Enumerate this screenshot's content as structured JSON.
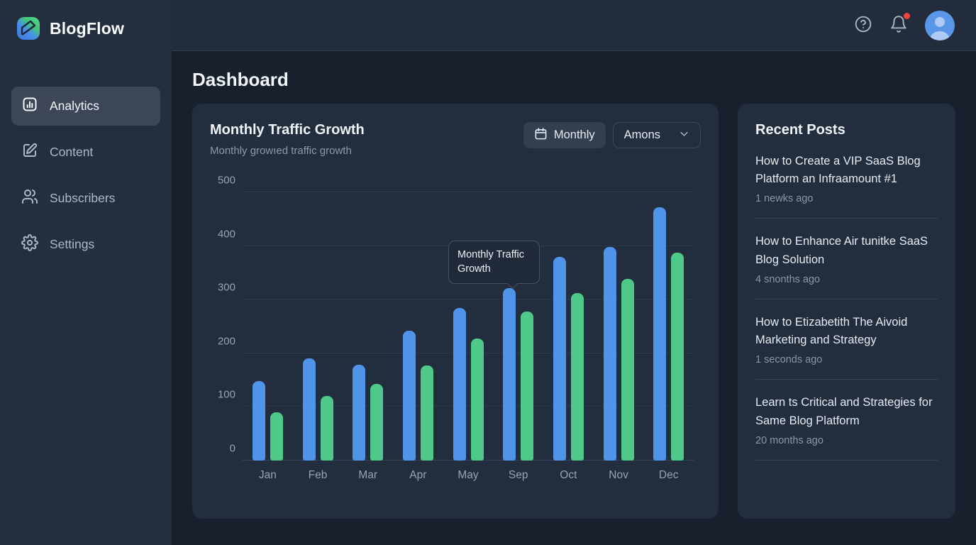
{
  "brand": {
    "name": "BlogFlow"
  },
  "sidebar": {
    "items": [
      {
        "label": "Analytics",
        "icon": "bar-chart-icon",
        "active": true
      },
      {
        "label": "Content",
        "icon": "edit-icon",
        "active": false
      },
      {
        "label": "Subscribers",
        "icon": "users-icon",
        "active": false
      },
      {
        "label": "Settings",
        "icon": "gear-icon",
        "active": false
      }
    ]
  },
  "topbar": {
    "icons": [
      "help-icon",
      "bell-icon",
      "avatar"
    ],
    "notification_dot": true
  },
  "page": {
    "title": "Dashboard"
  },
  "chart_card": {
    "title": "Monthly Traffic Growth",
    "subtitle": "Monthly growıed traffic growth",
    "period_button": {
      "label": "Monthly",
      "icon": "calendar-icon"
    },
    "filter_select": {
      "value": "Amons",
      "icon": "chevron-down-icon"
    },
    "tooltip": {
      "text": "Monthly Traffic Growth"
    }
  },
  "chart_data": {
    "type": "bar",
    "title": "Monthly Traffic Growth",
    "categories": [
      "Jan",
      "Feb",
      "Mar",
      "Apr",
      "May",
      "Sep",
      "Oct",
      "Nov",
      "Dec"
    ],
    "series": [
      {
        "name": "traffic-primary",
        "color": "#4f94e8",
        "values": [
          148,
          190,
          178,
          242,
          285,
          322,
          380,
          398,
          472
        ]
      },
      {
        "name": "traffic-secondary",
        "color": "#4fc98a",
        "values": [
          90,
          120,
          143,
          177,
          228,
          278,
          312,
          338,
          388
        ]
      }
    ],
    "ylim": [
      0,
      500
    ],
    "yticks": [
      0,
      100,
      200,
      300,
      400,
      500
    ],
    "grid": true,
    "legend": "none"
  },
  "recent_posts": {
    "title": "Recent Posts",
    "items": [
      {
        "title": "How to Create a VIP SaaS Blog Platform an Infraamount #1",
        "meta": "1 newks ago"
      },
      {
        "title": "How to Enhance Air tunitke SaaS Blog Solution",
        "meta": "4 snonths ago"
      },
      {
        "title": "How to Etizabetith The Aivoid Marketing and Strategy",
        "meta": "1 seconds ago"
      },
      {
        "title": "Learn ts Critical and Strategies for Same Blog Platform",
        "meta": "20 months ago"
      }
    ]
  },
  "colors": {
    "sidebar_bg": "#232e3e",
    "main_bg": "#18202e",
    "card_bg": "#222d3d",
    "accent_blue": "#4f94e8",
    "accent_green": "#4fc98a",
    "notification_red": "#ef4444"
  }
}
